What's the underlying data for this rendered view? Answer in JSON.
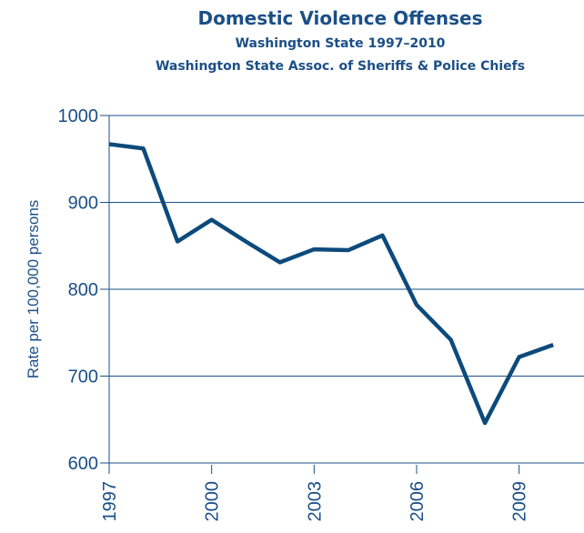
{
  "chart_data": {
    "type": "line",
    "title": "Domestic Violence Offenses",
    "subtitle": "Washington State 1997–2010",
    "source": "Washington State Assoc. of Sheriffs & Police Chiefs",
    "y_label": "Rate per 100,000 persons",
    "x": [
      1997,
      1998,
      1999,
      2000,
      2001,
      2002,
      2003,
      2004,
      2005,
      2006,
      2007,
      2008,
      2009,
      2010
    ],
    "series": [
      {
        "name": "Domestic Violence Offenses",
        "color": "#0d4a7c",
        "values": [
          967,
          962,
          855,
          880,
          855,
          831,
          846,
          845,
          862,
          782,
          742,
          646,
          722,
          736
        ]
      }
    ],
    "xlim": [
      1997,
      2010.9
    ],
    "xticks": [
      1997,
      2000,
      2003,
      2006,
      2009
    ],
    "ylim": [
      600,
      1000
    ],
    "yticks": [
      600,
      700,
      800,
      900,
      1000
    ],
    "grid": true
  }
}
